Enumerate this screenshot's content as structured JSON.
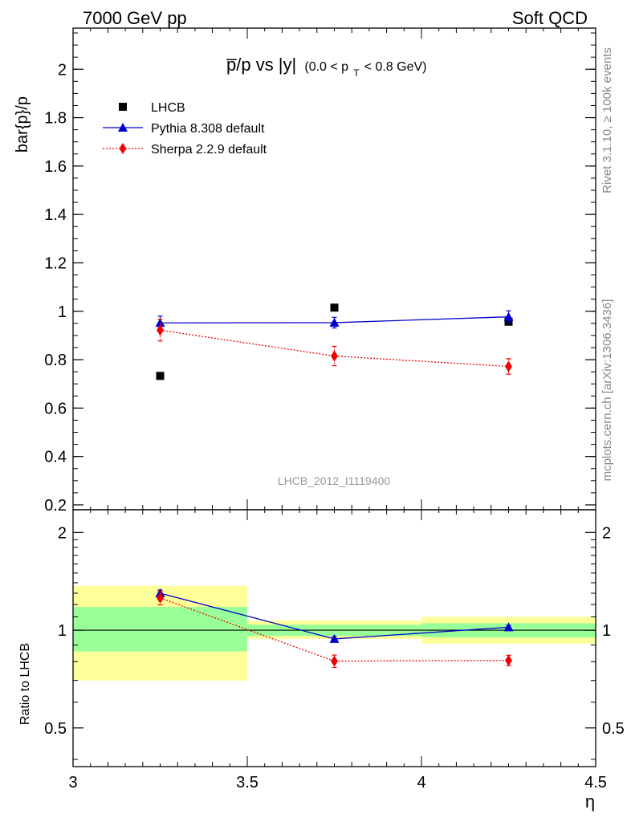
{
  "header": {
    "left": "7000 GeV pp",
    "right": "Soft QCD"
  },
  "side_labels": {
    "rivet": "Rivet 3.1.10, ≥ 100k events",
    "source": "mcplots.cern.ch [arXiv:1306.3436]"
  },
  "title": {
    "main": "p̅/p vs |y|",
    "sub": "(0.0 < p",
    "sub_index": "T",
    "sub_tail": " < 0.8 GeV)"
  },
  "watermark": "LHCB_2012_I1119400",
  "chart_data": [
    {
      "type": "scatter",
      "ylabel": "bar{p}/p",
      "xlim": [
        3.0,
        4.5
      ],
      "ylim": [
        0.18,
        2.17
      ],
      "grid": false,
      "legend": "top-left",
      "yticks": [
        0.2,
        0.4,
        0.6,
        0.8,
        1.0,
        1.2,
        1.4,
        1.6,
        1.8,
        2.0
      ],
      "ytick_labels": [
        "0.2",
        "0.4",
        "0.6",
        "0.8",
        "1",
        "1.2",
        "1.4",
        "1.6",
        "1.8",
        "2"
      ],
      "series": [
        {
          "name": "LHCB",
          "marker": "square",
          "color": "#000000",
          "x": [
            3.25,
            3.75,
            4.25
          ],
          "y": [
            0.733,
            1.015,
            0.957
          ],
          "err": [
            0.0,
            0.0,
            0.0
          ]
        },
        {
          "name": "Pythia 8.308 default",
          "marker": "triangle",
          "line": "solid",
          "color": "#0000cc",
          "x": [
            3.25,
            3.75,
            4.25
          ],
          "y": [
            0.952,
            0.953,
            0.977
          ],
          "err": [
            0.028,
            0.022,
            0.025
          ]
        },
        {
          "name": "Sherpa 2.2.9 default",
          "marker": "diamond",
          "line": "dotted",
          "color": "#ee0000",
          "x": [
            3.25,
            3.75,
            4.25
          ],
          "y": [
            0.922,
            0.815,
            0.772
          ],
          "err": [
            0.045,
            0.04,
            0.032
          ]
        }
      ]
    },
    {
      "type": "scatter",
      "ylabel": "Ratio to LHCB",
      "xlabel": "η",
      "xlim": [
        3.0,
        4.5
      ],
      "ylim": [
        0.38,
        2.35
      ],
      "yscale": "log",
      "grid": false,
      "xticks": [
        3.0,
        3.5,
        4.0,
        4.5
      ],
      "xtick_labels": [
        "3",
        "3.5",
        "4",
        "4.5"
      ],
      "yticks": [
        0.5,
        1.0,
        2.0
      ],
      "ytick_labels": [
        "0.5",
        "1",
        "2"
      ],
      "reference_line": 1.0,
      "bands": [
        {
          "x": [
            3.0,
            3.5
          ],
          "outer": [
            0.7,
            1.37
          ],
          "inner": [
            0.86,
            1.18
          ]
        },
        {
          "x": [
            3.5,
            4.0
          ],
          "outer": [
            0.94,
            1.07
          ],
          "inner": [
            0.96,
            1.04
          ]
        },
        {
          "x": [
            4.0,
            4.5
          ],
          "outer": [
            0.91,
            1.1
          ],
          "inner": [
            0.95,
            1.05
          ]
        }
      ],
      "band_colors": {
        "outer": "#ffff99",
        "inner": "#99ff99"
      },
      "series": [
        {
          "name": "Pythia 8.308 default",
          "marker": "triangle",
          "line": "solid",
          "color": "#0000cc",
          "x": [
            3.25,
            3.75,
            4.25
          ],
          "y": [
            1.3,
            0.94,
            1.021
          ],
          "err": [
            0.03,
            0.015,
            0.015
          ]
        },
        {
          "name": "Sherpa 2.2.9 default",
          "marker": "diamond",
          "line": "dotted",
          "color": "#ee0000",
          "x": [
            3.25,
            3.75,
            4.25
          ],
          "y": [
            1.257,
            0.803,
            0.807
          ],
          "err": [
            0.06,
            0.035,
            0.03
          ]
        }
      ]
    }
  ]
}
